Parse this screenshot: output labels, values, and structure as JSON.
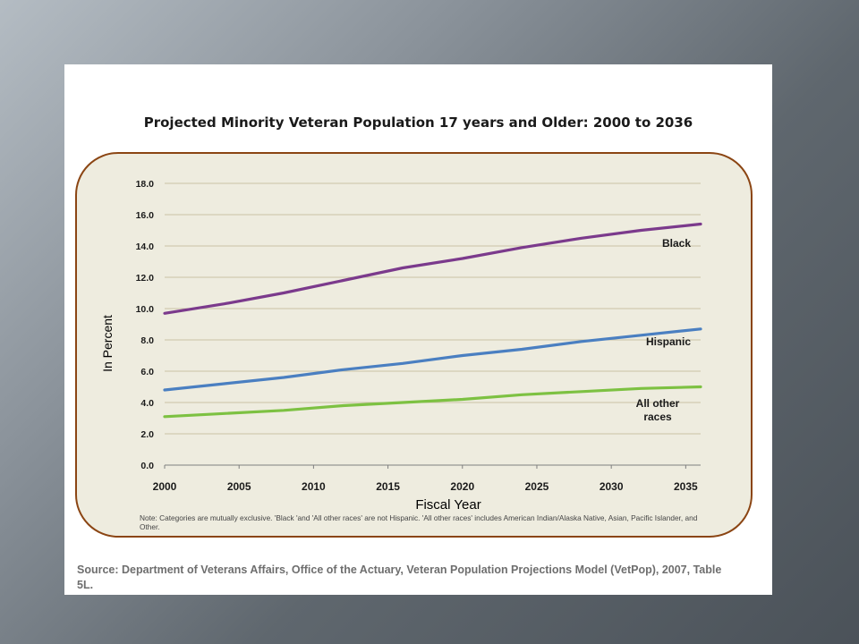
{
  "chart_data": {
    "type": "line",
    "title": "Projected Minority Veteran Population 17 years and Older: 2000 to 2036",
    "xlabel": "Fiscal Year",
    "ylabel": "In Percent",
    "xlim": [
      2000,
      2036
    ],
    "ylim": [
      0,
      18
    ],
    "x_ticks": [
      "2000",
      "2005",
      "2010",
      "2015",
      "2020",
      "2025",
      "2030",
      "2035"
    ],
    "y_ticks": [
      "0.0",
      "2.0",
      "4.0",
      "6.0",
      "8.0",
      "10.0",
      "12.0",
      "14.0",
      "16.0",
      "18.0"
    ],
    "grid": "horizontal",
    "series": [
      {
        "name": "Black",
        "label": "Black",
        "color": "#7b3a8c",
        "x": [
          2000,
          2004,
          2008,
          2012,
          2016,
          2020,
          2024,
          2028,
          2032,
          2036
        ],
        "values": [
          9.7,
          10.3,
          11.0,
          11.8,
          12.6,
          13.2,
          13.9,
          14.5,
          15.0,
          15.4
        ]
      },
      {
        "name": "Hispanic",
        "label": "Hispanic",
        "color": "#4a7fc1",
        "x": [
          2000,
          2004,
          2008,
          2012,
          2016,
          2020,
          2024,
          2028,
          2032,
          2036
        ],
        "values": [
          4.8,
          5.2,
          5.6,
          6.1,
          6.5,
          7.0,
          7.4,
          7.9,
          8.3,
          8.7
        ]
      },
      {
        "name": "All other races",
        "label": [
          "All other",
          "races"
        ],
        "color": "#7dc142",
        "x": [
          2000,
          2004,
          2008,
          2012,
          2016,
          2020,
          2024,
          2028,
          2032,
          2036
        ],
        "values": [
          3.1,
          3.3,
          3.5,
          3.8,
          4.0,
          4.2,
          4.5,
          4.7,
          4.9,
          5.0
        ]
      }
    ]
  },
  "note": "Note: Categories are mutually exclusive. 'Black 'and 'All other races' are not Hispanic. 'All other races' includes American Indian/Alaska Native, Asian, Pacific Islander, and Other.",
  "source": "Source: Department of Veterans Affairs, Office of the Actuary, Veteran Population Projections Model (VetPop), 2007, Table 5L."
}
